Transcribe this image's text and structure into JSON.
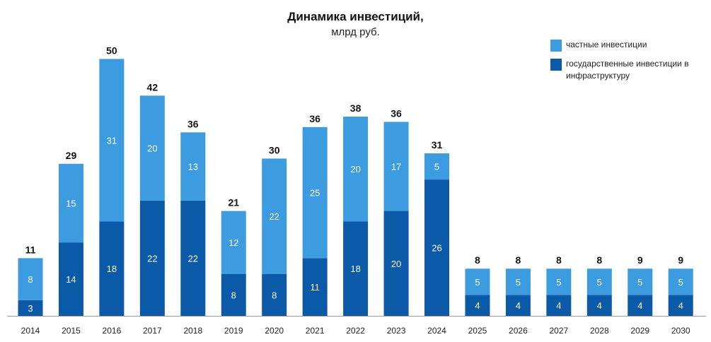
{
  "chart_data": {
    "type": "bar",
    "stacked": true,
    "title": "Динамика инвестиций,",
    "subtitle": "млрд руб.",
    "categories": [
      "2014",
      "2015",
      "2016",
      "2017",
      "2018",
      "2019",
      "2020",
      "2021",
      "2022",
      "2023",
      "2024",
      "2025",
      "2026",
      "2027",
      "2028",
      "2029",
      "2030"
    ],
    "series": [
      {
        "name": "государственные инвестиции в инфраструктуру",
        "color": "#0a5aa8",
        "values": [
          3,
          14,
          18,
          22,
          22,
          8,
          8,
          11,
          18,
          20,
          26,
          4,
          4,
          4,
          4,
          4,
          4
        ]
      },
      {
        "name": "частные инвестиции",
        "color": "#3d9be0",
        "values": [
          8,
          15,
          31,
          20,
          13,
          12,
          22,
          25,
          20,
          17,
          5,
          5,
          5,
          5,
          5,
          5,
          5
        ]
      }
    ],
    "totals": [
      11,
      29,
      50,
      42,
      36,
      21,
      30,
      36,
      38,
      36,
      31,
      8,
      8,
      8,
      8,
      9,
      9
    ],
    "legend": {
      "position": "top-right",
      "items": [
        {
          "label": "частные инвестиции",
          "color": "#3d9be0"
        },
        {
          "label": "государственные инвестиции в инфраструктуру",
          "color": "#0a5aa8"
        }
      ]
    },
    "ylim": [
      0,
      50
    ],
    "grid": false
  }
}
